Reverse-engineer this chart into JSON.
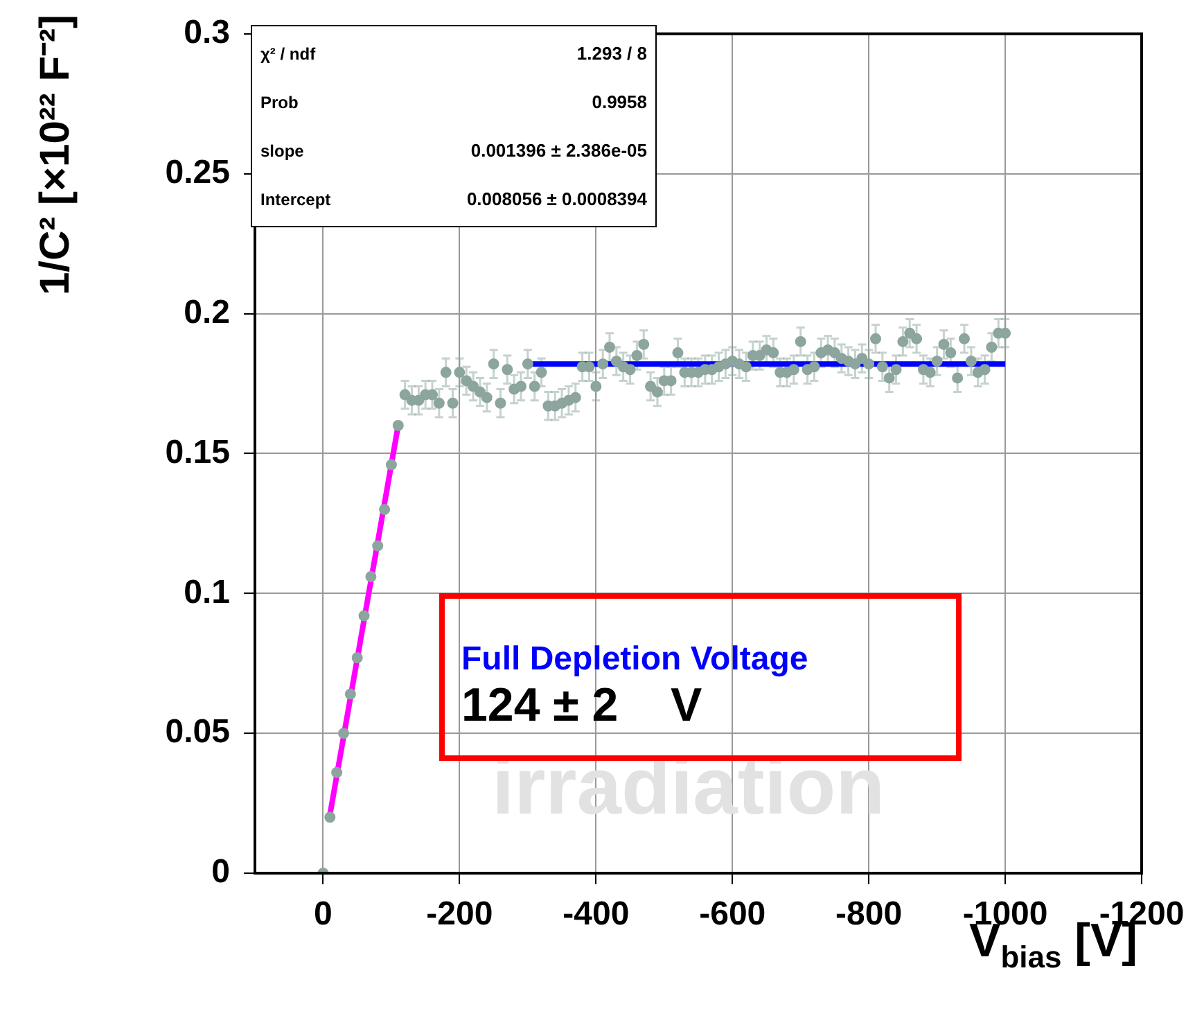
{
  "chart_data": {
    "type": "scatter",
    "xlabel": "V$_{bias}$ [V]",
    "ylabel": "1/C² [×10²² F⁻²]",
    "xlim": [
      100,
      -1200
    ],
    "xticks": [
      0,
      -200,
      -400,
      -600,
      -800,
      -1000,
      -1200
    ],
    "ylim": [
      0,
      0.3
    ],
    "yticks": [
      0,
      0.05,
      0.1,
      0.15,
      0.2,
      0.25,
      0.3
    ],
    "grid": true,
    "legend": false,
    "marker": "circle",
    "annotations": [
      "χ² / ndf",
      "1.293 / 8",
      "Prob",
      "0.9958",
      "slope",
      "0.001396 ± 2.386e-05",
      "Intercept",
      "0.008056 ± 0.0008394",
      "Full Depletion Voltage",
      "124 ± 2    V",
      "irradiation"
    ],
    "series": [
      {
        "type": "scatter",
        "color": "#8ca59e",
        "x": [
          0,
          -10,
          -20,
          -30,
          -40,
          -50,
          -60,
          -70,
          -80,
          -90,
          -100,
          -110,
          -120,
          -130,
          -140,
          -150,
          -160,
          -170,
          -180,
          -190,
          -200,
          -210,
          -220,
          -230,
          -240,
          -250,
          -260,
          -270,
          -280,
          -290,
          -300,
          -310,
          -320,
          -330,
          -340,
          -350,
          -360,
          -370,
          -380,
          -390,
          -400,
          -410,
          -420,
          -430,
          -440,
          -450,
          -460,
          -470,
          -480,
          -490,
          -500,
          -510,
          -520,
          -530,
          -540,
          -550,
          -560,
          -570,
          -580,
          -590,
          -600,
          -610,
          -620,
          -630,
          -640,
          -650,
          -660,
          -670,
          -680,
          -690,
          -700,
          -710,
          -720,
          -730,
          -740,
          -750,
          -760,
          -770,
          -780,
          -790,
          -800,
          -810,
          -820,
          -830,
          -840,
          -850,
          -860,
          -870,
          -880,
          -890,
          -900,
          -910,
          -920,
          -930,
          -940,
          -950,
          -960,
          -970,
          -980,
          -990,
          -1000
        ],
        "values": [
          0,
          0.02,
          0.036,
          0.05,
          0.064,
          0.077,
          0.092,
          0.106,
          0.117,
          0.13,
          0.146,
          0.16,
          0.171,
          0.169,
          0.169,
          0.171,
          0.171,
          0.168,
          0.179,
          0.168,
          0.179,
          0.176,
          0.174,
          0.172,
          0.17,
          0.182,
          0.168,
          0.18,
          0.173,
          0.174,
          0.182,
          0.174,
          0.179,
          0.167,
          0.167,
          0.168,
          0.169,
          0.17,
          0.181,
          0.181,
          0.174,
          0.182,
          0.188,
          0.183,
          0.181,
          0.18,
          0.185,
          0.189,
          0.174,
          0.172,
          0.176,
          0.176,
          0.186,
          0.179,
          0.179,
          0.179,
          0.18,
          0.18,
          0.181,
          0.182,
          0.183,
          0.182,
          0.181,
          0.185,
          0.185,
          0.187,
          0.186,
          0.179,
          0.179,
          0.18,
          0.19,
          0.18,
          0.181,
          0.186,
          0.187,
          0.186,
          0.184,
          0.183,
          0.182,
          0.184,
          0.182,
          0.191,
          0.181,
          0.177,
          0.18,
          0.19,
          0.193,
          0.191,
          0.18,
          0.179,
          0.183,
          0.189,
          0.186,
          0.177,
          0.191,
          0.183,
          0.179,
          0.18,
          0.188,
          0.193,
          0.193
        ],
        "errors": [
          null,
          null,
          null,
          null,
          null,
          null,
          null,
          null,
          null,
          null,
          null,
          null,
          0.005,
          0.005,
          0.005,
          0.005,
          0.005,
          0.005,
          0.005,
          0.005,
          0.005,
          0.005,
          0.005,
          0.005,
          0.005,
          0.005,
          0.005,
          0.005,
          0.005,
          0.005,
          0.005,
          0.005,
          0.005,
          0.005,
          0.005,
          0.005,
          0.005,
          0.005,
          0.005,
          0.005,
          0.005,
          0.005,
          0.005,
          0.005,
          0.005,
          0.005,
          0.005,
          0.005,
          0.005,
          0.005,
          0.005,
          0.005,
          0.005,
          0.005,
          0.005,
          0.005,
          0.005,
          0.005,
          0.005,
          0.005,
          0.005,
          0.005,
          0.005,
          0.005,
          0.005,
          0.005,
          0.005,
          0.005,
          0.005,
          0.005,
          0.005,
          0.005,
          0.005,
          0.005,
          0.005,
          0.005,
          0.005,
          0.005,
          0.005,
          0.005,
          0.005,
          0.005,
          0.005,
          0.005,
          0.005,
          0.005,
          0.005,
          0.005,
          0.005,
          0.005,
          0.005,
          0.005,
          0.005,
          0.005,
          0.005,
          0.005,
          0.005,
          0.005,
          0.005,
          0.005,
          0.005
        ]
      },
      {
        "type": "line",
        "marker": "none",
        "color": "#ff00ff",
        "x": [
          -10,
          -110
        ],
        "values": [
          0.021,
          0.16
        ]
      },
      {
        "type": "line",
        "marker": "none",
        "color": "#0000ff",
        "x": [
          -300,
          -1000
        ],
        "values": [
          0.182,
          0.182
        ]
      }
    ]
  }
}
